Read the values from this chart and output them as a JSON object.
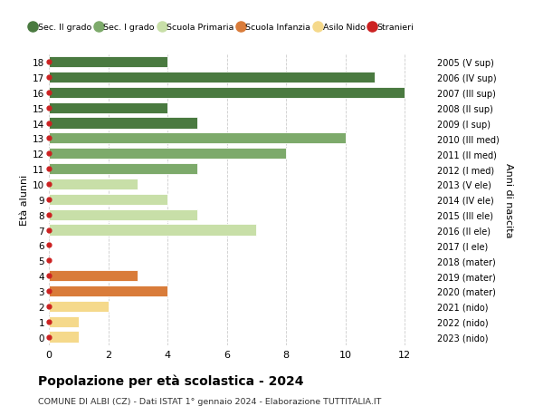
{
  "ages": [
    18,
    17,
    16,
    15,
    14,
    13,
    12,
    11,
    10,
    9,
    8,
    7,
    6,
    5,
    4,
    3,
    2,
    1,
    0
  ],
  "right_labels": [
    "2005 (V sup)",
    "2006 (IV sup)",
    "2007 (III sup)",
    "2008 (II sup)",
    "2009 (I sup)",
    "2010 (III med)",
    "2011 (II med)",
    "2012 (I med)",
    "2013 (V ele)",
    "2014 (IV ele)",
    "2015 (III ele)",
    "2016 (II ele)",
    "2017 (I ele)",
    "2018 (mater)",
    "2019 (mater)",
    "2020 (mater)",
    "2021 (nido)",
    "2022 (nido)",
    "2023 (nido)"
  ],
  "values": [
    4,
    11,
    12,
    4,
    5,
    10,
    8,
    5,
    3,
    4,
    5,
    7,
    0,
    0,
    3,
    4,
    2,
    1,
    1
  ],
  "color_map": {
    "18": "#4a7a40",
    "17": "#4a7a40",
    "16": "#4a7a40",
    "15": "#4a7a40",
    "14": "#4a7a40",
    "13": "#7daa6b",
    "12": "#7daa6b",
    "11": "#7daa6b",
    "10": "#c8dfa8",
    "9": "#c8dfa8",
    "8": "#c8dfa8",
    "7": "#c8dfa8",
    "6": "#c8dfa8",
    "5": "#d97c3a",
    "4": "#d97c3a",
    "3": "#d97c3a",
    "2": "#f5d98b",
    "1": "#f5d98b",
    "0": "#f5d98b"
  },
  "stranieri_dot_color": "#cc2222",
  "title": "Popolazione per età scolastica - 2024",
  "subtitle": "COMUNE DI ALBI (CZ) - Dati ISTAT 1° gennaio 2024 - Elaborazione TUTTITALIA.IT",
  "ylabel_left": "Età alunni",
  "ylabel_right": "Anni di nascita",
  "xlim": [
    0,
    13
  ],
  "xticks": [
    0,
    2,
    4,
    6,
    8,
    10,
    12
  ],
  "ylim_min": -0.55,
  "ylim_max": 18.55,
  "bar_height": 0.72,
  "background_color": "#ffffff",
  "grid_color": "#cccccc",
  "legend_entries": [
    {
      "label": "Sec. II grado",
      "color": "#4a7a40",
      "type": "patch"
    },
    {
      "label": "Sec. I grado",
      "color": "#7daa6b",
      "type": "patch"
    },
    {
      "label": "Scuola Primaria",
      "color": "#c8dfa8",
      "type": "patch"
    },
    {
      "label": "Scuola Infanzia",
      "color": "#d97c3a",
      "type": "patch"
    },
    {
      "label": "Asilo Nido",
      "color": "#f5d98b",
      "type": "patch"
    },
    {
      "label": "Stranieri",
      "color": "#cc2222",
      "type": "dot"
    }
  ]
}
